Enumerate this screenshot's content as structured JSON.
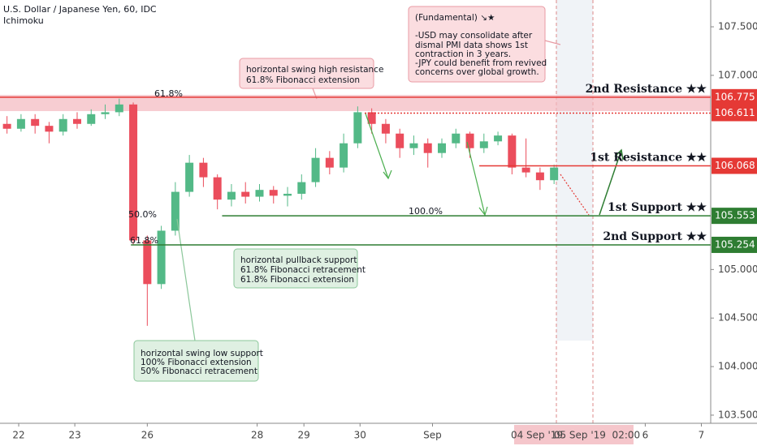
{
  "chart_data": {
    "type": "candlestick",
    "title": "U.S. Dollar / Japanese Yen, 60, IDC",
    "subtitle": "Ichimoku",
    "xlim": [
      0,
      304
    ],
    "ylim": [
      103.416,
      107.776
    ],
    "yticks": [
      {
        "value": 103.5,
        "label": "103.500"
      },
      {
        "value": 104,
        "label": "104.000"
      },
      {
        "value": 104.5,
        "label": "104.500"
      },
      {
        "value": 105,
        "label": "105.000"
      },
      {
        "value": 107,
        "label": "107.000"
      },
      {
        "value": 107.5,
        "label": "107.500"
      }
    ],
    "xticks": [
      {
        "value": 8,
        "label": "22"
      },
      {
        "value": 32,
        "label": "23"
      },
      {
        "value": 63,
        "label": "26"
      },
      {
        "value": 110,
        "label": "28"
      },
      {
        "value": 130,
        "label": "29"
      },
      {
        "value": 154,
        "label": "30"
      },
      {
        "value": 185,
        "label": "Sep"
      },
      {
        "value": 276,
        "label": "6"
      },
      {
        "value": 300,
        "label": "7"
      }
    ],
    "crosshair_labels": [
      "04 Sep '19",
      "05 Sep '19  02:00"
    ],
    "up_color": "#53b987",
    "down_color": "#eb4d5c",
    "x": [
      3,
      9,
      15,
      21,
      27,
      33,
      39,
      45,
      51,
      57,
      63,
      69,
      75,
      81,
      87,
      93,
      99,
      105,
      111,
      117,
      123,
      129,
      135,
      141,
      147,
      153,
      159,
      165,
      171,
      177,
      183,
      189,
      195,
      201,
      207,
      213,
      219,
      225,
      231,
      237
    ],
    "open": [
      106.5,
      106.45,
      106.55,
      106.48,
      106.42,
      106.55,
      106.5,
      106.6,
      106.62,
      106.7,
      105.3,
      104.85,
      105.4,
      105.8,
      106.1,
      105.95,
      105.72,
      105.8,
      105.75,
      105.82,
      105.76,
      105.78,
      105.9,
      106.15,
      106.05,
      106.3,
      106.62,
      106.5,
      106.4,
      106.25,
      106.3,
      106.2,
      106.3,
      106.4,
      106.25,
      106.32,
      106.38,
      106.05,
      106.0,
      105.92
    ],
    "high": [
      106.58,
      106.6,
      106.6,
      106.52,
      106.6,
      106.62,
      106.65,
      106.7,
      106.76,
      106.72,
      105.35,
      105.45,
      105.9,
      106.18,
      106.15,
      105.98,
      105.88,
      105.9,
      105.88,
      105.86,
      105.85,
      105.98,
      106.25,
      106.22,
      106.4,
      106.68,
      106.66,
      106.55,
      106.45,
      106.38,
      106.35,
      106.35,
      106.45,
      106.42,
      106.4,
      106.42,
      106.4,
      106.35,
      106.05,
      106.08
    ],
    "low": [
      106.4,
      106.42,
      106.4,
      106.3,
      106.38,
      106.45,
      106.48,
      106.55,
      106.58,
      105.25,
      104.42,
      104.8,
      105.35,
      105.75,
      105.85,
      105.62,
      105.65,
      105.68,
      105.7,
      105.68,
      105.65,
      105.72,
      105.85,
      105.98,
      106.0,
      106.25,
      106.4,
      106.3,
      106.15,
      106.18,
      106.05,
      106.15,
      106.25,
      106.15,
      106.2,
      106.28,
      105.98,
      105.95,
      105.82,
      105.88
    ],
    "close": [
      106.45,
      106.55,
      106.48,
      106.42,
      106.55,
      106.5,
      106.6,
      106.62,
      106.7,
      105.3,
      104.85,
      105.4,
      105.8,
      106.1,
      105.95,
      105.72,
      105.8,
      105.75,
      105.82,
      105.76,
      105.78,
      105.9,
      106.15,
      106.05,
      106.3,
      106.62,
      106.5,
      106.4,
      106.25,
      106.3,
      106.2,
      106.3,
      106.4,
      106.25,
      106.32,
      106.38,
      106.05,
      106.0,
      105.92,
      106.05
    ],
    "levels": [
      {
        "name": "2nd Resistance ★★",
        "value": 106.775,
        "price_label": "106.775",
        "color": "#e53935",
        "from": 0
      },
      {
        "value": 106.611,
        "price_label": "106.611",
        "color": "#e53935",
        "from": 156,
        "dotted": true
      },
      {
        "name": "1st Resistance ★★",
        "value": 106.068,
        "price_label": "106.068",
        "color": "#e53935",
        "from": 205
      },
      {
        "name": "1st Support ★★",
        "value": 105.553,
        "price_label": "105.553",
        "color": "#2e7d32",
        "from": 95
      },
      {
        "name": "2nd Support ★★",
        "value": 105.254,
        "price_label": "105.254",
        "color": "#2e7d32",
        "from": 56
      }
    ],
    "fib_labels": [
      "61.8%",
      "50.0%",
      "100.0%",
      "61.8%"
    ],
    "annotations": [
      [
        "(Fundamental) ↘★",
        "-USD may consolidate after",
        "dismal PMI data shows 1st",
        "contraction in 3 years.",
        "-JPY could benefit from revived",
        "concerns over global growth."
      ],
      [
        "horizontal swing high resistance",
        "61.8% Fibonacci extension"
      ],
      [
        "horizontal pullback support",
        "61.8% Fibonacci retracement",
        "61.8% Fibonacci extension"
      ],
      [
        "horizontal swing low support",
        "100% Fibonacci extension",
        "50% Fibonacci retracement"
      ]
    ]
  }
}
